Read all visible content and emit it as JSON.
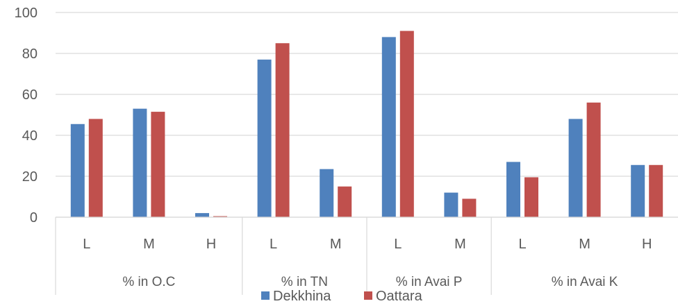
{
  "chart_data": {
    "type": "bar",
    "groups": [
      {
        "label": "% in O.C",
        "categories": [
          "L",
          "M",
          "H"
        ]
      },
      {
        "label": "% in TN",
        "categories": [
          "L",
          "M"
        ]
      },
      {
        "label": "% in Avai P",
        "categories": [
          "L",
          "M"
        ]
      },
      {
        "label": "% in Avai K",
        "categories": [
          "L",
          "M",
          "H"
        ]
      }
    ],
    "series": [
      {
        "name": "Dekkhina",
        "color": "#4F81BD",
        "values": [
          45.5,
          53,
          2,
          77,
          23.5,
          88,
          12,
          27,
          48,
          25.5
        ]
      },
      {
        "name": "Oattara",
        "color": "#C0504D",
        "values": [
          48,
          51.5,
          0.5,
          85,
          15,
          91,
          9,
          19.5,
          56,
          25.5
        ]
      }
    ],
    "ylim": [
      0,
      100
    ],
    "yticks": [
      0,
      20,
      40,
      60,
      80,
      100
    ],
    "grid": true,
    "legend_position": "bottom"
  }
}
